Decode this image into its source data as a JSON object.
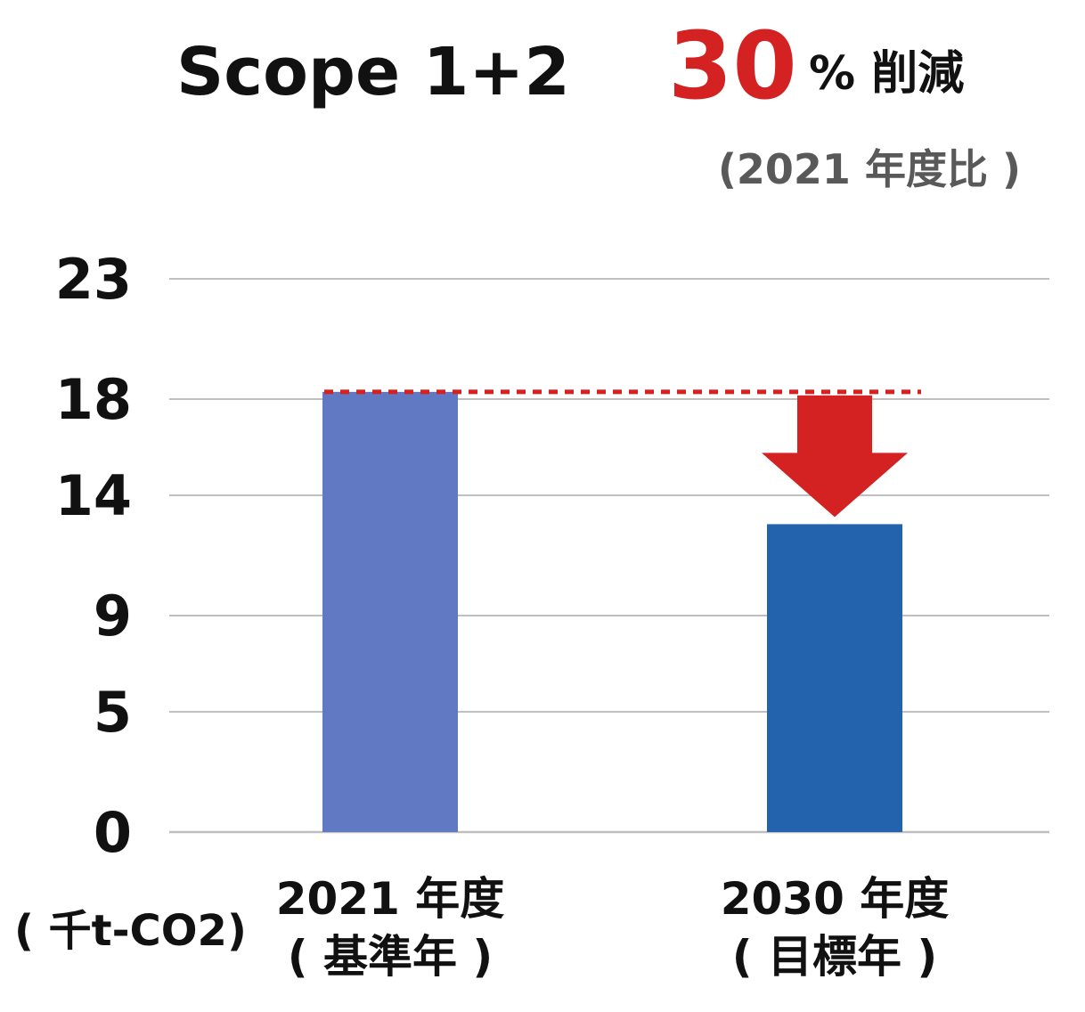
{
  "header": {
    "scope_label": "Scope 1+2",
    "reduction_value": "30",
    "reduction_suffix": "% 削減",
    "reduction_note": "(2021 年度比 )"
  },
  "chart_data": {
    "type": "bar",
    "categories": [
      [
        "2021 年度",
        "( 基準年 )"
      ],
      [
        "2030 年度",
        "( 目標年 )"
      ]
    ],
    "values": [
      18.3,
      12.8
    ],
    "ylim": [
      0,
      25.5
    ],
    "yticks": [
      0,
      5,
      9,
      14,
      18,
      23
    ],
    "ytick_labels": [
      "0",
      "5",
      "9",
      "14",
      "18",
      "23"
    ],
    "ylabel": "( 千t-CO2)",
    "xlabel": "",
    "grid": true,
    "bar_colors": [
      "#6079c2",
      "#2362ad"
    ],
    "annotations": {
      "baseline_reference_line": {
        "value": 18.3,
        "style": "dotted",
        "color": "#d42121"
      },
      "reduction_arrow": {
        "from": 18.3,
        "to": 12.8,
        "color": "#d42121"
      }
    }
  }
}
